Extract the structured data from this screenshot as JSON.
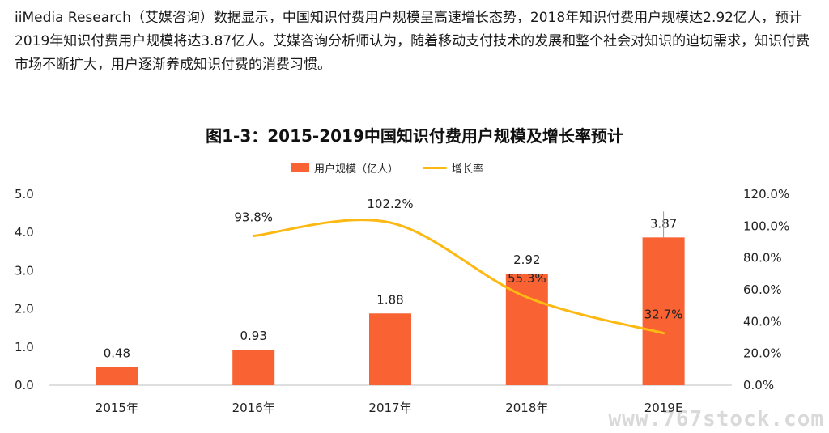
{
  "intro_text": "iiMedia Research（艾媒咨询）数据显示，中国知识付费用户规模呈高速增长态势，2018年知识付费用户规模达2.92亿人，预计2019年知识付费用户规模将达3.87亿人。艾媒咨询分析师认为，随着移动支付技术的发展和整个社会对知识的迫切需求，知识付费市场不断扩大，用户逐渐养成知识付费的消费习惯。",
  "watermark": "www.767stock.com",
  "colors": {
    "bar": "#f96232",
    "line": "#fdb913"
  },
  "chart_data": {
    "type": "bar",
    "title": "图1-3：2015-2019中国知识付费用户规模及增长率预计",
    "categories": [
      "2015年",
      "2016年",
      "2017年",
      "2018年",
      "2019E"
    ],
    "series": [
      {
        "name": "用户规模（亿人）",
        "type": "bar",
        "axis": "left",
        "values": [
          0.48,
          0.93,
          1.88,
          2.92,
          3.87
        ],
        "labels": [
          "0.48",
          "0.93",
          "1.88",
          "2.92",
          "3.87"
        ]
      },
      {
        "name": "增长率",
        "type": "line",
        "axis": "right",
        "values": [
          null,
          93.8,
          102.2,
          55.3,
          32.7
        ],
        "labels": [
          "",
          "93.8%",
          "102.2%",
          "55.3%",
          "32.7%"
        ]
      }
    ],
    "y_left": {
      "ticks": [
        "0.0",
        "1.0",
        "2.0",
        "3.0",
        "4.0",
        "5.0"
      ],
      "ylim": [
        0,
        5
      ]
    },
    "y_right": {
      "ticks": [
        "0.0%",
        "20.0%",
        "40.0%",
        "60.0%",
        "80.0%",
        "100.0%",
        "120.0%"
      ],
      "ylim": [
        0,
        120
      ]
    },
    "legend_position": "top-center",
    "grid": false
  }
}
